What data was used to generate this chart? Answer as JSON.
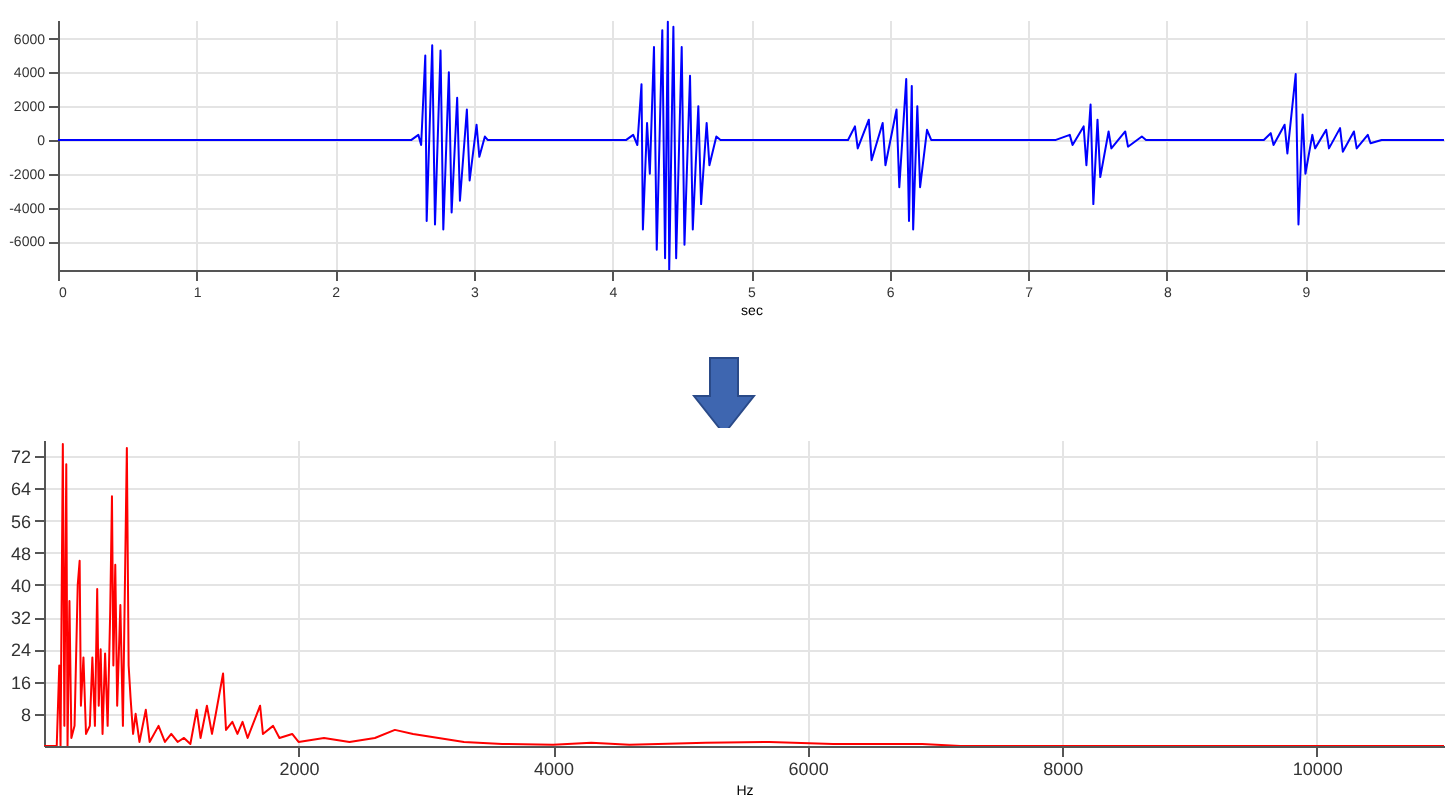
{
  "chart_data": [
    {
      "type": "line",
      "xlabel": "sec",
      "xlim": [
        0,
        10
      ],
      "xticks": [
        0,
        1,
        2,
        3,
        4,
        5,
        6,
        7,
        8,
        9
      ],
      "ylim": [
        -7700,
        7100
      ],
      "yticks": [
        -6000,
        -4000,
        -2000,
        0,
        2000,
        4000,
        6000
      ],
      "grid": true,
      "series": [
        {
          "color": "#0000ff",
          "x": [
            0,
            2.55,
            2.6,
            2.62,
            2.65,
            2.66,
            2.7,
            2.72,
            2.76,
            2.78,
            2.82,
            2.84,
            2.88,
            2.9,
            2.95,
            2.97,
            3.02,
            3.04,
            3.08,
            3.1,
            4.1,
            4.15,
            4.18,
            4.21,
            4.22,
            4.25,
            4.27,
            4.3,
            4.32,
            4.36,
            4.38,
            4.4,
            4.41,
            4.44,
            4.46,
            4.5,
            4.52,
            4.56,
            4.58,
            4.62,
            4.64,
            4.68,
            4.7,
            4.75,
            4.78,
            5.7,
            5.75,
            5.77,
            5.85,
            5.87,
            5.95,
            5.97,
            6.05,
            6.07,
            6.12,
            6.14,
            6.16,
            6.17,
            6.2,
            6.22,
            6.27,
            6.3,
            7.2,
            7.3,
            7.32,
            7.4,
            7.42,
            7.45,
            7.47,
            7.5,
            7.52,
            7.58,
            7.6,
            7.7,
            7.72,
            7.82,
            7.85,
            8.7,
            8.75,
            8.77,
            8.85,
            8.87,
            8.93,
            8.95,
            8.98,
            9.0,
            9.05,
            9.07,
            9.15,
            9.17,
            9.25,
            9.27,
            9.35,
            9.37,
            9.45,
            9.47,
            9.55,
            10
          ],
          "values": [
            0,
            0,
            300,
            -300,
            5000,
            -4800,
            5600,
            -5000,
            5300,
            -5300,
            4000,
            -4300,
            2500,
            -3600,
            1800,
            -2400,
            900,
            -1000,
            200,
            0,
            0,
            300,
            -300,
            3300,
            -5300,
            1000,
            -2000,
            5500,
            -6500,
            6500,
            -7000,
            7000,
            -7700,
            6700,
            -7000,
            5500,
            -6200,
            3800,
            -5300,
            2000,
            -3800,
            1000,
            -1500,
            200,
            0,
            0,
            800,
            -500,
            1200,
            -1200,
            1000,
            -1500,
            1800,
            -2800,
            3600,
            -4800,
            3200,
            -5300,
            2000,
            -2800,
            600,
            0,
            0,
            300,
            -300,
            800,
            -1500,
            2100,
            -3800,
            1200,
            -2200,
            500,
            -500,
            500,
            -400,
            200,
            0,
            0,
            400,
            -300,
            900,
            -800,
            3900,
            -5000,
            1500,
            -2000,
            300,
            -500,
            600,
            -500,
            700,
            -700,
            500,
            -500,
            300,
            -200,
            0,
            0
          ]
        }
      ]
    },
    {
      "type": "line",
      "xlabel": "Hz",
      "xlim": [
        0,
        11000
      ],
      "xticks": [
        2000,
        4000,
        6000,
        8000,
        10000
      ],
      "ylim": [
        0,
        76
      ],
      "yticks": [
        8,
        16,
        24,
        32,
        40,
        48,
        56,
        64,
        72
      ],
      "grid": true,
      "series": [
        {
          "color": "#ff0000",
          "x": [
            0,
            100,
            120,
            130,
            148,
            160,
            175,
            185,
            200,
            215,
            240,
            265,
            280,
            290,
            310,
            330,
            360,
            380,
            400,
            418,
            430,
            445,
            460,
            480,
            500,
            520,
            534,
            545,
            560,
            575,
            600,
            620,
            651,
            665,
            680,
            700,
            720,
            750,
            800,
            830,
            900,
            950,
            1000,
            1050,
            1100,
            1150,
            1200,
            1230,
            1280,
            1320,
            1350,
            1407,
            1430,
            1480,
            1520,
            1560,
            1600,
            1698,
            1720,
            1800,
            1850,
            1950,
            2000,
            2200,
            2400,
            2600,
            2757,
            2900,
            3100,
            3300,
            3600,
            4000,
            4300,
            4600,
            5200,
            5700,
            6200,
            6900,
            7200,
            11000
          ],
          "values": [
            0,
            0,
            20,
            0,
            75,
            5,
            70,
            0,
            36,
            2,
            5,
            40,
            46,
            10,
            22,
            3,
            5,
            22,
            5,
            39,
            10,
            24,
            3,
            23,
            5,
            33,
            62,
            20,
            45,
            10,
            35,
            5,
            74,
            20,
            12,
            3,
            8,
            1,
            9,
            1,
            5,
            1,
            3,
            1,
            2,
            0.5,
            9,
            2,
            10,
            3,
            8,
            18,
            4,
            6,
            3,
            6,
            2,
            10,
            3,
            5,
            2,
            3,
            1,
            2,
            1,
            2,
            4,
            3,
            2,
            1,
            0.5,
            0.3,
            0.8,
            0.3,
            0.8,
            1,
            0.5,
            0.5,
            0,
            0
          ]
        }
      ]
    }
  ]
}
